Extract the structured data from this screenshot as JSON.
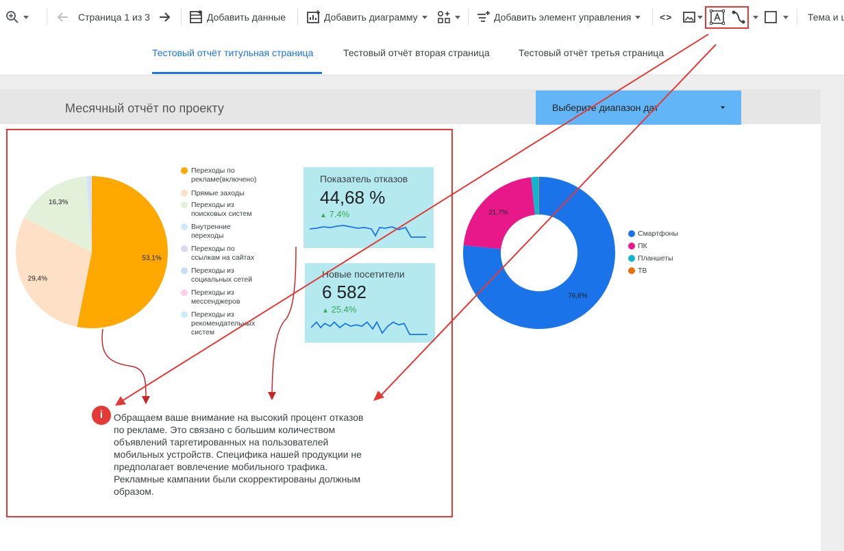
{
  "toolbar": {
    "page_indicator": "Страница 1 из 3",
    "add_data": "Добавить данные",
    "add_chart": "Добавить диаграмму",
    "add_control": "Добавить элемент управления",
    "code_glyph": "<>",
    "theme": "Тема и ш"
  },
  "tabs": [
    {
      "label": "Тестовый отчёт титульная страница",
      "active": true
    },
    {
      "label": "Тестовый отчёт вторая страница",
      "active": false
    },
    {
      "label": "Тестовый отчёт третья страница",
      "active": false
    }
  ],
  "report": {
    "title": "Месячный отчёт по проекту",
    "date_range_label": "Выберите диапазон дат"
  },
  "pie_chart": {
    "chart_data": {
      "type": "pie",
      "categories": [
        "Переходы по рекламе(включено)",
        "Прямые заходы",
        "Переходы из поисковых систем",
        "Внутренние переходы",
        "Переходы по ссылкам на сайтах",
        "Переходы из социальных сетей",
        "Переходы из мессенджеров",
        "Переходы из рекомендательных систем"
      ],
      "values": [
        53.1,
        29.4,
        16.3,
        0.5,
        0.2,
        0.2,
        0.1,
        0.2
      ],
      "labels": [
        "53,1%",
        "29,4%",
        "16,3%",
        "",
        "",
        "",
        "",
        ""
      ],
      "colors": [
        "#ffa800",
        "#fde0c5",
        "#e3f1db",
        "#cfe8fc",
        "#dcd6f2",
        "#c8def4",
        "#fbcfe8",
        "#c9eef4"
      ]
    },
    "legend": [
      {
        "line1": "Переходы по",
        "line2": "рекламе(включено)",
        "color": "#ffa800"
      },
      {
        "line1": "Прямые заходы",
        "line2": "",
        "color": "#fde0c5"
      },
      {
        "line1": "Переходы из",
        "line2": "поисковых систем",
        "color": "#e3f1db"
      },
      {
        "line1": "Внутренние",
        "line2": "переходы",
        "color": "#cfe8fc"
      },
      {
        "line1": "Переходы по",
        "line2": "ссылкам на сайтах",
        "color": "#dcd6f2"
      },
      {
        "line1": "Переходы из",
        "line2": "социальных сетей",
        "color": "#c8def4"
      },
      {
        "line1": "Переходы из",
        "line2": "мессенджеров",
        "color": "#fbcfe8"
      },
      {
        "line1": "Переходы из",
        "line2": "рекомендательных",
        "line3": "систем",
        "color": "#c9eef4"
      }
    ]
  },
  "scorecards": [
    {
      "label": "Показатель отказов",
      "value": "44,68 %",
      "delta": "7.4%"
    },
    {
      "label": "Новые посетители",
      "value": "6 582",
      "delta": "25.4%"
    }
  ],
  "donut_chart": {
    "chart_data": {
      "type": "pie",
      "categories": [
        "Смартфоны",
        "ПК",
        "Планшеты",
        "ТВ"
      ],
      "values": [
        76.6,
        21.7,
        1.6,
        0.1
      ],
      "labels": [
        "76,6%",
        "21,7%",
        "",
        ""
      ],
      "colors": [
        "#1a73e8",
        "#e8178a",
        "#12b5cb",
        "#e8710a"
      ]
    }
  },
  "note": {
    "text": "Обращаем ваше внимание на высокий процент отказов по рекламе. Это связано с большим количеством объявлений таргетированных на пользователей мобильных устройств. Специфика нашей продукции не предполагает вовлечение мобильного трафика. Рекламные кампании были скорректированы должным образом.",
    "icon_text": "i"
  },
  "colors": {
    "accent": "#1a73e8",
    "annotation_red": "#e53935",
    "scorecard_bg": "#b4e9f0",
    "date_picker_bg": "#62b6f7"
  }
}
